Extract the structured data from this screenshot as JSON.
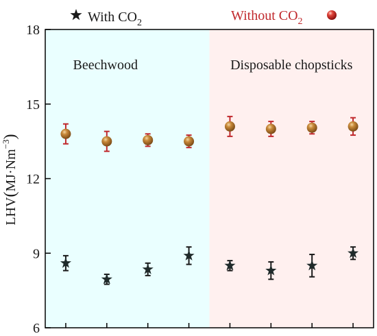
{
  "chart_data": {
    "type": "scatter",
    "ylabel": "LHV (MJ·Nm⁻³)",
    "ylabel_parts": {
      "base": "LHV",
      "open": "(",
      "unit": "MJ·Nm",
      "exp": "−3",
      "close": ")"
    },
    "ylim": [
      6,
      18
    ],
    "yticks": [
      6,
      9,
      12,
      15,
      18
    ],
    "xticks_count": 8,
    "grid": false,
    "legend_position": "top",
    "legend": [
      {
        "marker": "star",
        "label_base": "With CO",
        "label_sub": "2",
        "color": "#1a1a1a"
      },
      {
        "marker": "sphere",
        "label_base": "Without CO",
        "label_sub": "2",
        "color": "#c0282c"
      }
    ],
    "groups": [
      {
        "label": "Beechwood",
        "background": "#eaffff",
        "x_range": [
          0.5,
          4.5
        ]
      },
      {
        "label": "Disposable chopsticks",
        "background": "#fff0ef",
        "x_range": [
          4.5,
          8.5
        ]
      }
    ],
    "series": [
      {
        "marker": "star",
        "color": "#1a1a1a",
        "x": [
          1,
          2,
          3,
          4,
          5,
          6,
          7,
          8
        ],
        "y": [
          8.6,
          7.95,
          8.35,
          8.9,
          8.5,
          8.3,
          8.5,
          9.0
        ],
        "err": [
          0.3,
          0.2,
          0.25,
          0.35,
          0.2,
          0.35,
          0.45,
          0.25
        ]
      },
      {
        "marker": "sphere",
        "color": "#c0282c",
        "x": [
          1,
          2,
          3,
          4,
          5,
          6,
          7,
          8
        ],
        "y": [
          13.8,
          13.5,
          13.55,
          13.5,
          14.1,
          14.0,
          14.05,
          14.1
        ],
        "err": [
          0.4,
          0.4,
          0.25,
          0.25,
          0.4,
          0.3,
          0.25,
          0.35
        ]
      }
    ]
  }
}
